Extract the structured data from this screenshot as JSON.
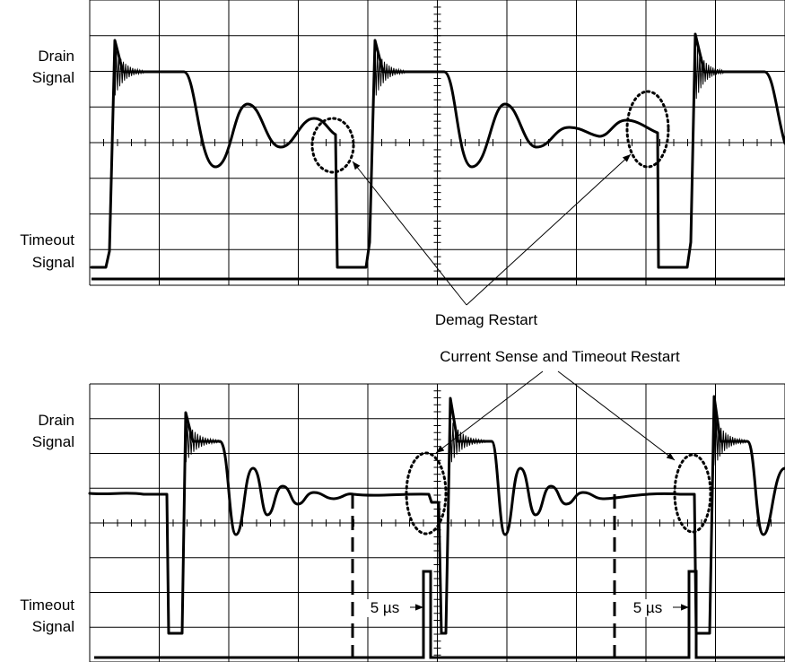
{
  "top_panel": {
    "drain_label": [
      "Drain",
      "Signal"
    ],
    "timeout_label": [
      "Timeout",
      "Signal"
    ]
  },
  "bottom_panel": {
    "drain_label": [
      "Drain",
      "Signal"
    ],
    "timeout_label": [
      "Timeout",
      "Signal"
    ],
    "interval_label": "5 µs"
  },
  "annotations": {
    "demag_restart": "Demag Restart",
    "current_sense_restart": "Current Sense and Timeout Restart"
  }
}
